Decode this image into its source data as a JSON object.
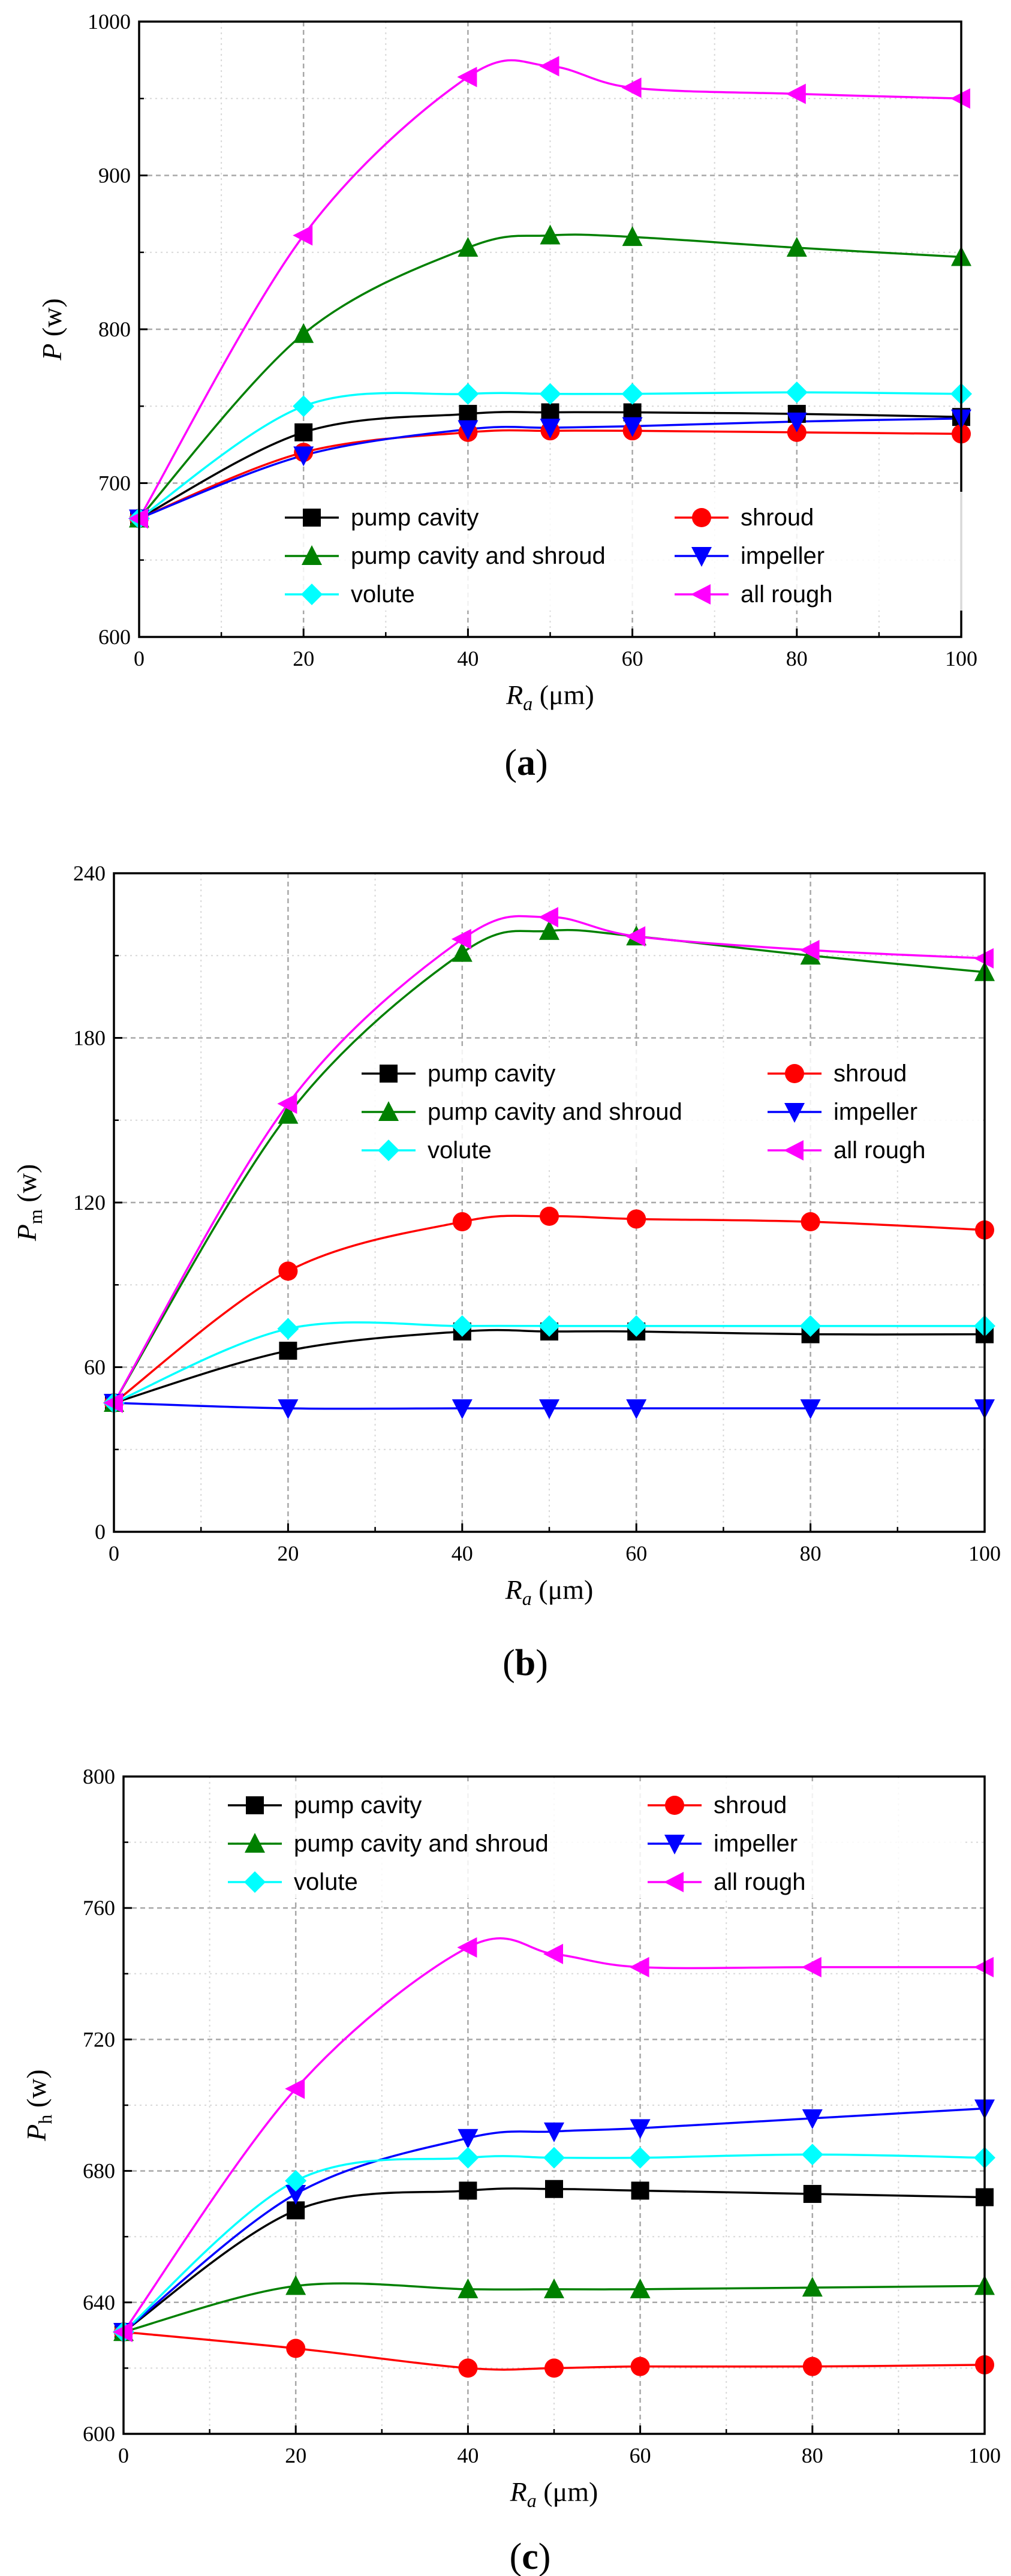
{
  "chart_data": [
    {
      "type": "line",
      "panel_label": "a",
      "ylabel_main": "P",
      "ylabel_sub": "",
      "ylabel_unit": "(w)",
      "xlabel_main": "R",
      "xlabel_sub": "a",
      "xlabel_unit": "(μm)",
      "xlim": [
        0,
        100
      ],
      "ylim": [
        600,
        1000
      ],
      "xticks": [
        0,
        20,
        40,
        60,
        80,
        100
      ],
      "yticks": [
        600,
        700,
        800,
        900,
        1000
      ],
      "x": [
        0,
        20,
        40,
        50,
        60,
        80,
        100
      ],
      "series": [
        {
          "name": "pump cavity",
          "color": "#000000",
          "marker": "square",
          "values": [
            677,
            733,
            745,
            746,
            746,
            745,
            743
          ]
        },
        {
          "name": "shroud",
          "color": "#ff0000",
          "marker": "circle",
          "values": [
            677,
            720,
            733,
            734,
            734,
            733,
            732
          ]
        },
        {
          "name": "pump cavity and shroud",
          "color": "#008000",
          "marker": "triangle-up",
          "values": [
            677,
            797,
            853,
            861,
            860,
            853,
            847
          ]
        },
        {
          "name": "impeller",
          "color": "#0000ff",
          "marker": "triangle-down",
          "values": [
            677,
            718,
            735,
            736,
            737,
            740,
            742
          ]
        },
        {
          "name": "volute",
          "color": "#00ffff",
          "marker": "diamond",
          "values": [
            677,
            750,
            758,
            758,
            758,
            759,
            758
          ]
        },
        {
          "name": "all rough",
          "color": "#ff00ff",
          "marker": "triangle-left",
          "values": [
            677,
            861,
            964,
            971,
            957,
            953,
            950
          ]
        }
      ]
    },
    {
      "type": "line",
      "panel_label": "b",
      "ylabel_main": "P",
      "ylabel_sub": "m",
      "ylabel_unit": "(w)",
      "xlabel_main": "R",
      "xlabel_sub": "a",
      "xlabel_unit": "(μm)",
      "xlim": [
        0,
        100
      ],
      "ylim": [
        0,
        240
      ],
      "xticks": [
        0,
        20,
        40,
        60,
        80,
        100
      ],
      "yticks": [
        0,
        60,
        120,
        180,
        240
      ],
      "x": [
        0,
        20,
        40,
        50,
        60,
        80,
        100
      ],
      "series": [
        {
          "name": "pump cavity",
          "color": "#000000",
          "marker": "square",
          "values": [
            47,
            66,
            73,
            73,
            73,
            72,
            72
          ]
        },
        {
          "name": "shroud",
          "color": "#ff0000",
          "marker": "circle",
          "values": [
            47,
            95,
            113,
            115,
            114,
            113,
            110
          ]
        },
        {
          "name": "pump cavity and shroud",
          "color": "#008000",
          "marker": "triangle-up",
          "values": [
            47,
            152,
            211,
            219,
            217,
            210,
            204
          ]
        },
        {
          "name": "impeller",
          "color": "#0000ff",
          "marker": "triangle-down",
          "values": [
            47,
            45,
            45,
            45,
            45,
            45,
            45
          ]
        },
        {
          "name": "volute",
          "color": "#00ffff",
          "marker": "diamond",
          "values": [
            47,
            74,
            75,
            75,
            75,
            75,
            75
          ]
        },
        {
          "name": "all rough",
          "color": "#ff00ff",
          "marker": "triangle-left",
          "values": [
            47,
            156,
            216,
            224,
            217,
            212,
            209
          ]
        }
      ]
    },
    {
      "type": "line",
      "panel_label": "c",
      "ylabel_main": "P",
      "ylabel_sub": "h",
      "ylabel_unit": "(w)",
      "xlabel_main": "R",
      "xlabel_sub": "a",
      "xlabel_unit": "(μm)",
      "xlim": [
        0,
        100
      ],
      "ylim": [
        600,
        800
      ],
      "xticks": [
        0,
        20,
        40,
        60,
        80,
        100
      ],
      "yticks": [
        600,
        640,
        680,
        720,
        760,
        800
      ],
      "x": [
        0,
        20,
        40,
        50,
        60,
        80,
        100
      ],
      "series": [
        {
          "name": "pump cavity",
          "color": "#000000",
          "marker": "square",
          "values": [
            631,
            668,
            674,
            674.5,
            674,
            673,
            672
          ]
        },
        {
          "name": "shroud",
          "color": "#ff0000",
          "marker": "circle",
          "values": [
            631,
            626,
            620,
            620,
            620.5,
            620.5,
            621
          ]
        },
        {
          "name": "pump cavity and shroud",
          "color": "#008000",
          "marker": "triangle-up",
          "values": [
            631,
            645,
            644,
            644,
            644,
            644.5,
            645
          ]
        },
        {
          "name": "impeller",
          "color": "#0000ff",
          "marker": "triangle-down",
          "values": [
            631,
            673,
            690,
            692,
            693,
            696,
            699
          ]
        },
        {
          "name": "volute",
          "color": "#00ffff",
          "marker": "diamond",
          "values": [
            631,
            677,
            684,
            684,
            684,
            685,
            684
          ]
        },
        {
          "name": "all rough",
          "color": "#ff00ff",
          "marker": "triangle-left",
          "values": [
            631,
            705,
            748,
            746,
            742,
            742,
            742
          ]
        }
      ]
    }
  ]
}
